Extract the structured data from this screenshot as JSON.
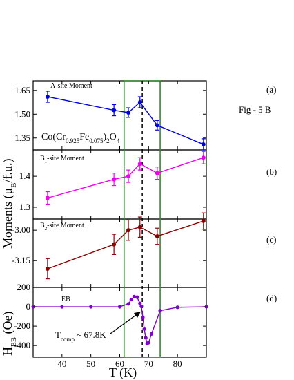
{
  "figure": {
    "ylabel_main": "Moments (",
    "ylabel_mu": "μ",
    "ylabel_sub": "B",
    "ylabel_tail": "/f.u.)",
    "xlabel": "T (K)",
    "fig_label": "Fig - 5 B",
    "formula": {
      "p1": "Co(Cr",
      "s1": "0.925",
      "p2": "Fe",
      "s2": "0.075",
      "p3": ")",
      "s3": "2",
      "p4": "O",
      "s4": "4"
    }
  },
  "chart_data": [
    {
      "type": "line",
      "panel_label": "(a)",
      "title": "A-site Moment",
      "color": "#0000dd",
      "x": [
        35,
        58,
        63,
        67,
        73,
        89
      ],
      "y": [
        1.61,
        1.525,
        1.51,
        1.575,
        1.43,
        1.31
      ],
      "err": [
        0.035,
        0.035,
        0.03,
        0.035,
        0.03,
        0.035
      ],
      "yticks": [
        1.35,
        1.5,
        1.65
      ],
      "ytick_labels": [
        "1.35",
        "1.50",
        "1.65"
      ],
      "ylim": [
        1.275,
        1.71
      ]
    },
    {
      "type": "line",
      "panel_label": "(b)",
      "title_main": "B",
      "title_sub": "1",
      "title_tail": "-site Moment",
      "color": "#ee00ee",
      "x": [
        35,
        58,
        63,
        67,
        73,
        89
      ],
      "y": [
        1.33,
        1.39,
        1.4,
        1.44,
        1.41,
        1.46
      ],
      "err": [
        0.02,
        0.02,
        0.02,
        0.02,
        0.02,
        0.02
      ],
      "yticks": [
        1.3,
        1.4
      ],
      "ytick_labels": [
        "1.3",
        "1.4"
      ],
      "ylim": [
        1.262,
        1.485
      ]
    },
    {
      "type": "line",
      "panel_label": "(c)",
      "title_main": "B",
      "title_sub": "2",
      "title_tail": "-site Moment",
      "color": "#8b0000",
      "x": [
        35,
        58,
        63,
        67,
        73,
        89
      ],
      "y": [
        -3.19,
        -3.07,
        -3.0,
        -2.985,
        -3.03,
        -2.955
      ],
      "err": [
        0.05,
        0.05,
        0.05,
        0.05,
        0.04,
        0.04
      ],
      "yticks": [
        -3.15,
        -3.0
      ],
      "ytick_labels": [
        "-3.15",
        "-3.00"
      ],
      "ylim": [
        -3.282,
        -2.945
      ]
    },
    {
      "type": "line",
      "panel_label": "(d)",
      "title": "EB",
      "color": "#8000cc",
      "ylabel_main": "H",
      "ylabel_sub": "EB",
      "ylabel_tail": " (Oe)",
      "x": [
        30,
        40,
        50,
        60,
        63,
        64,
        65,
        66,
        67,
        67.5,
        68,
        68.5,
        69,
        69.5,
        70,
        71,
        74,
        80,
        90
      ],
      "y": [
        0,
        0,
        0,
        0,
        30,
        75,
        105,
        100,
        35,
        5,
        -110,
        -230,
        -320,
        -380,
        -370,
        -280,
        -40,
        -5,
        0
      ],
      "yticks": [
        -400,
        -200,
        0,
        200
      ],
      "ytick_labels": [
        "-400",
        "-200",
        "0",
        "200"
      ],
      "ylim": [
        -520,
        200
      ],
      "xlim": [
        30,
        90
      ],
      "xticks": [
        40,
        50,
        60,
        70,
        80
      ],
      "xtick_labels": [
        "40",
        "50",
        "60",
        "70",
        "80"
      ],
      "annotation_main": "T",
      "annotation_sub": "comp",
      "annotation_tail": " ~ 67.8K"
    }
  ],
  "highlight_range": [
    61.5,
    74
  ],
  "dashed_line_x": 67.8
}
